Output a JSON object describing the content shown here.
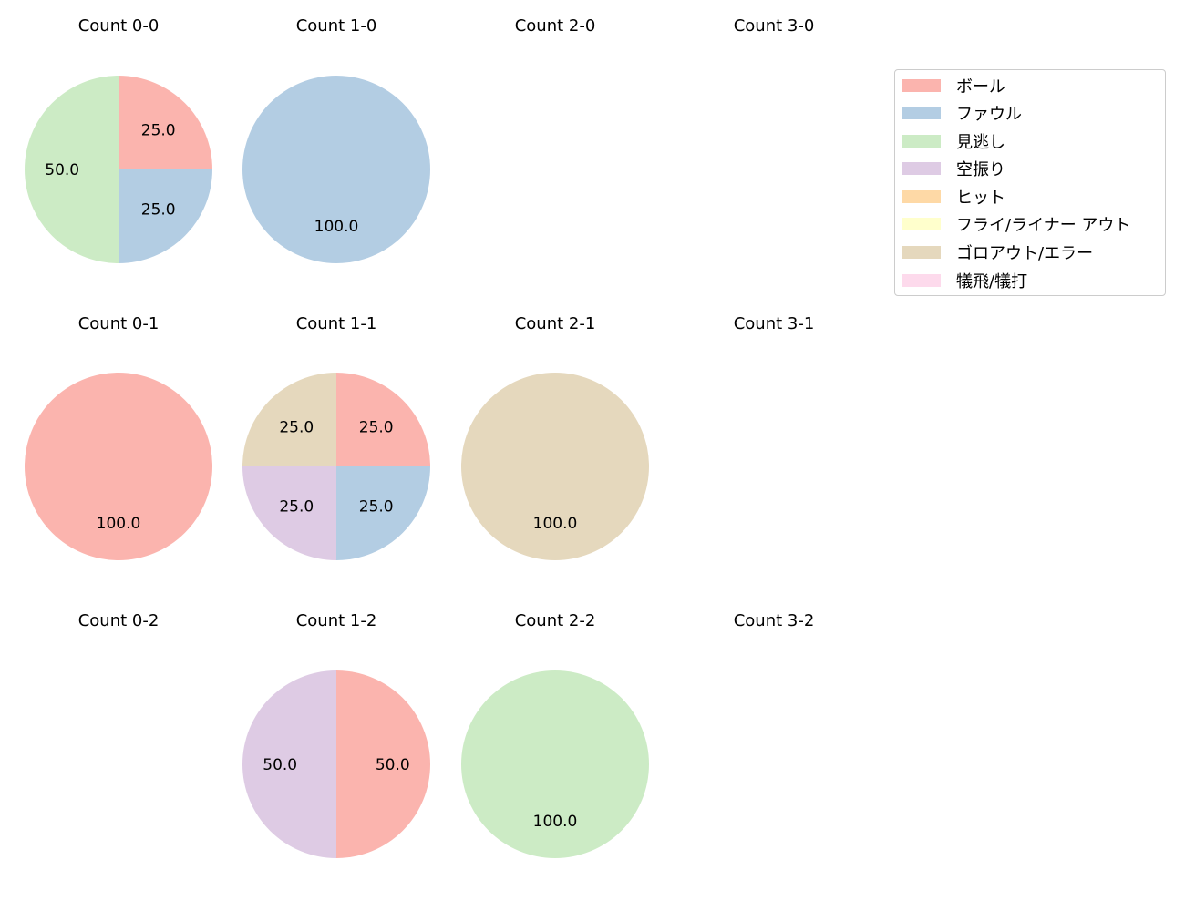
{
  "chart_data": {
    "type": "pie",
    "categories": [
      "ボール",
      "ファウル",
      "見逃し",
      "空振り",
      "ヒット",
      "フライ/ライナー アウト",
      "ゴロアウト/エラー",
      "犠飛/犠打"
    ],
    "colors": [
      "#fbb4ae",
      "#b3cde3",
      "#ccebc5",
      "#decbe4",
      "#fed9a6",
      "#ffffcc",
      "#e5d8bd",
      "#fddaec"
    ],
    "legend_position": "upper right",
    "subplots": [
      {
        "title": "Count 0-0",
        "row": 0,
        "col": 0,
        "values": [
          1,
          1,
          2,
          0,
          0,
          0,
          0,
          0
        ],
        "labels": [
          "25.0",
          "25.0",
          "50.0"
        ]
      },
      {
        "title": "Count 1-0",
        "row": 0,
        "col": 1,
        "values": [
          0,
          1,
          0,
          0,
          0,
          0,
          0,
          0
        ],
        "labels": [
          "100.0"
        ]
      },
      {
        "title": "Count 2-0",
        "row": 0,
        "col": 2,
        "values": [],
        "labels": []
      },
      {
        "title": "Count 3-0",
        "row": 0,
        "col": 3,
        "values": [],
        "labels": []
      },
      {
        "title": "Count 0-1",
        "row": 1,
        "col": 0,
        "values": [
          1,
          0,
          0,
          0,
          0,
          0,
          0,
          0
        ],
        "labels": [
          "100.0"
        ]
      },
      {
        "title": "Count 1-1",
        "row": 1,
        "col": 1,
        "values": [
          1,
          1,
          0,
          1,
          0,
          0,
          1,
          0
        ],
        "labels": [
          "25.0",
          "25.0",
          "25.0",
          "25.0"
        ]
      },
      {
        "title": "Count 2-1",
        "row": 1,
        "col": 2,
        "values": [
          0,
          0,
          0,
          0,
          0,
          0,
          1,
          0
        ],
        "labels": [
          "100.0"
        ]
      },
      {
        "title": "Count 3-1",
        "row": 1,
        "col": 3,
        "values": [],
        "labels": []
      },
      {
        "title": "Count 0-2",
        "row": 2,
        "col": 0,
        "values": [],
        "labels": []
      },
      {
        "title": "Count 1-2",
        "row": 2,
        "col": 1,
        "values": [
          1,
          0,
          0,
          1,
          0,
          0,
          0,
          0
        ],
        "labels": [
          "50.0",
          "50.0"
        ]
      },
      {
        "title": "Count 2-2",
        "row": 2,
        "col": 2,
        "values": [
          0,
          0,
          1,
          0,
          0,
          0,
          0,
          0
        ],
        "labels": [
          "100.0"
        ]
      },
      {
        "title": "Count 3-2",
        "row": 2,
        "col": 3,
        "values": [],
        "labels": []
      }
    ]
  },
  "legend": {
    "items": [
      {
        "label": "ボール",
        "color": "#fbb4ae"
      },
      {
        "label": "ファウル",
        "color": "#b3cde3"
      },
      {
        "label": "見逃し",
        "color": "#ccebc5"
      },
      {
        "label": "空振り",
        "color": "#decbe4"
      },
      {
        "label": "ヒット",
        "color": "#fed9a6"
      },
      {
        "label": "フライ/ライナー アウト",
        "color": "#ffffcc"
      },
      {
        "label": "ゴロアウト/エラー",
        "color": "#e5d8bd"
      },
      {
        "label": "犠飛/犠打",
        "color": "#fddaec"
      }
    ]
  }
}
